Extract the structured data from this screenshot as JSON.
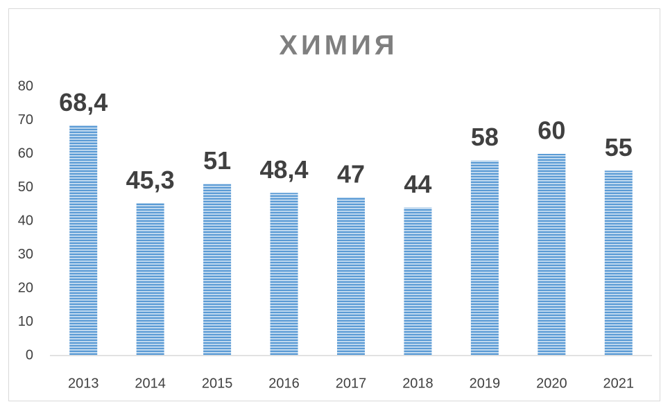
{
  "chart_data": {
    "type": "bar",
    "title": "ХИМИЯ",
    "categories": [
      "2013",
      "2014",
      "2015",
      "2016",
      "2017",
      "2018",
      "2019",
      "2020",
      "2021"
    ],
    "values": [
      68.4,
      45.3,
      51,
      48.4,
      47,
      44,
      58,
      60,
      55
    ],
    "value_labels": [
      "68,4",
      "45,3",
      "51",
      "48,4",
      "47",
      "44",
      "58",
      "60",
      "55"
    ],
    "color": "#5b9bd5",
    "ylim": [
      0,
      80
    ],
    "yticks": [
      0,
      10,
      20,
      30,
      40,
      50,
      60,
      70,
      80
    ],
    "grid": false
  }
}
